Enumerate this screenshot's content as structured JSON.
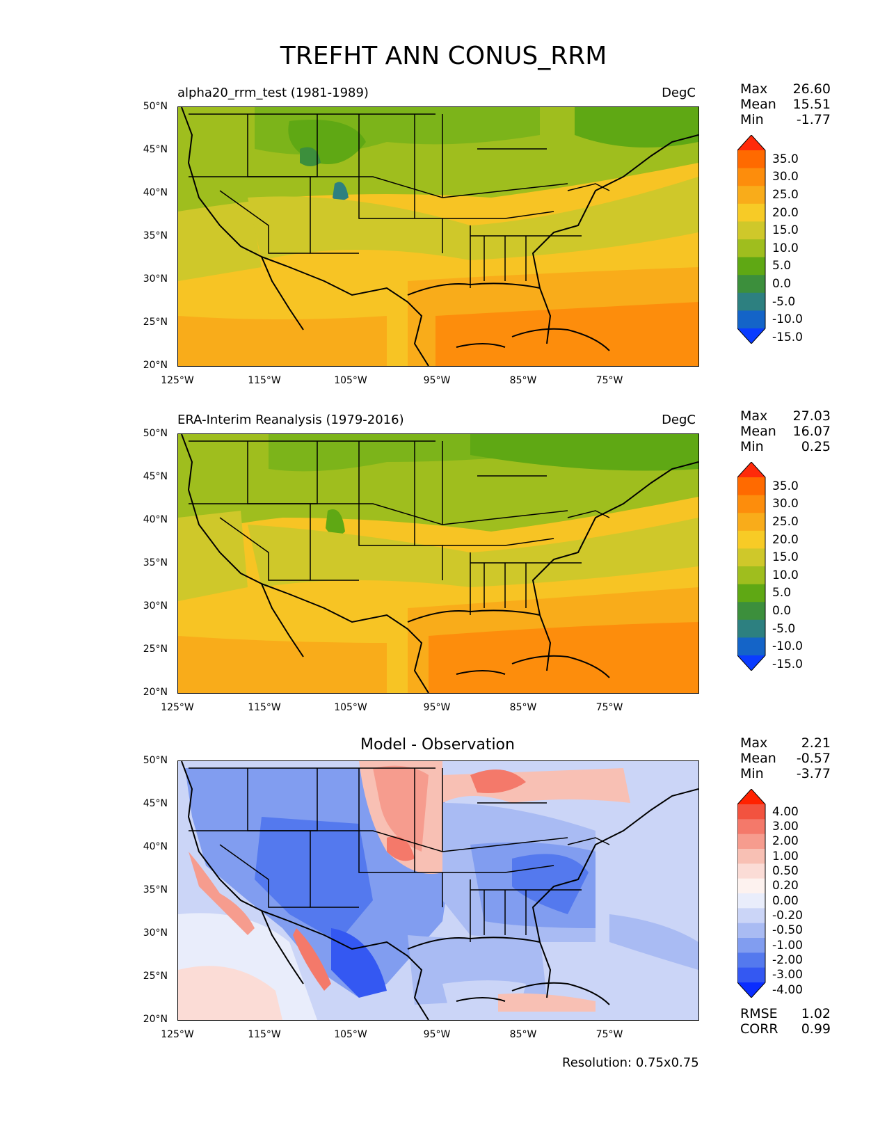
{
  "figure": {
    "title": "TREFHT ANN CONUS_RRM",
    "resolution": "Resolution: 0.75x0.75"
  },
  "axes": {
    "lat_labels": [
      "50°N",
      "45°N",
      "40°N",
      "35°N",
      "30°N",
      "25°N",
      "20°N"
    ],
    "lon_labels": [
      "125°W",
      "115°W",
      "105°W",
      "95°W",
      "85°W",
      "75°W"
    ]
  },
  "panels": [
    {
      "title": "alpha20_rrm_test (1981-1989)",
      "units": "DegC",
      "stats": {
        "max_label": "Max",
        "max": "26.60",
        "mean_label": "Mean",
        "mean": "15.51",
        "min_label": "Min",
        "min": "-1.77"
      }
    },
    {
      "title": "ERA-Interim Reanalysis (1979-2016)",
      "units": "DegC",
      "stats": {
        "max_label": "Max",
        "max": "27.03",
        "mean_label": "Mean",
        "mean": "16.07",
        "min_label": "Min",
        "min": "0.25"
      }
    },
    {
      "title": "Model - Observation",
      "units": "",
      "stats": {
        "max_label": "Max",
        "max": "2.21",
        "mean_label": "Mean",
        "mean": "-0.57",
        "min_label": "Min",
        "min": "-3.77"
      },
      "extra": {
        "rmse_label": "RMSE",
        "rmse": "1.02",
        "corr_label": "CORR",
        "corr": "0.99"
      }
    }
  ],
  "colorbars": {
    "temperature": {
      "labels": [
        "35.0",
        "30.0",
        "25.0",
        "20.0",
        "15.0",
        "10.0",
        "5.0",
        "0.0",
        "-5.0",
        "-10.0",
        "-15.0"
      ],
      "colors": [
        "#ff2a0a",
        "#ff6a00",
        "#fd8d0c",
        "#f9ac1a",
        "#f7cb26",
        "#cfc82a",
        "#9fbe1e",
        "#5fa814",
        "#3c8f3c",
        "#2d8080",
        "#1464c8",
        "#0a3cff"
      ]
    },
    "difference": {
      "labels": [
        "4.00",
        "3.00",
        "2.00",
        "1.00",
        "0.50",
        "0.20",
        "0.00",
        "-0.20",
        "-0.50",
        "-1.00",
        "-2.00",
        "-3.00",
        "-4.00"
      ],
      "colors": [
        "#ff2200",
        "#f2533f",
        "#f4796a",
        "#f69c8e",
        "#f8c0b4",
        "#fbdcd6",
        "#fdf2ef",
        "#e9edfb",
        "#cbd5f7",
        "#a9bbf3",
        "#819df0",
        "#5479ee",
        "#3458f2",
        "#0a2dff"
      ]
    }
  },
  "chart_data": {
    "type": "map-contour",
    "variable": "TREFHT",
    "season": "ANN",
    "region": "CONUS_RRM",
    "lat_range": [
      20,
      50
    ],
    "lon_range": [
      -125,
      -65
    ],
    "colormap_levels_temperature": [
      -15,
      -10,
      -5,
      0,
      5,
      10,
      15,
      20,
      25,
      30,
      35
    ],
    "colormap_levels_difference": [
      -4,
      -3,
      -2,
      -1,
      -0.5,
      -0.2,
      0,
      0.2,
      0.5,
      1,
      2,
      3,
      4
    ]
  }
}
